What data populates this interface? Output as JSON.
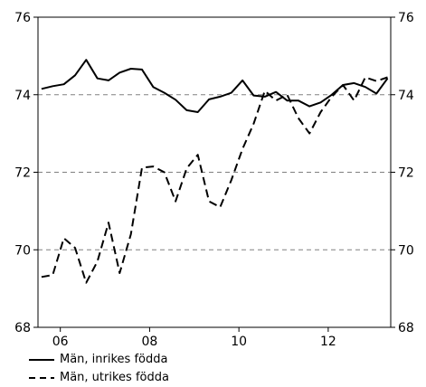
{
  "chart_data": {
    "type": "line",
    "x": [
      2005.58,
      2005.83,
      2006.08,
      2006.33,
      2006.58,
      2006.83,
      2007.08,
      2007.33,
      2007.58,
      2007.83,
      2008.08,
      2008.33,
      2008.58,
      2008.83,
      2009.08,
      2009.33,
      2009.58,
      2009.83,
      2010.08,
      2010.33,
      2010.58,
      2010.83,
      2011.08,
      2011.33,
      2011.58,
      2011.83,
      2012.08,
      2012.33,
      2012.58,
      2012.83,
      2013.08,
      2013.33
    ],
    "xticks": [
      2006,
      2008,
      2010,
      2012
    ],
    "xtick_labels": [
      "06",
      "08",
      "10",
      "12"
    ],
    "xlim": [
      2005.5,
      2013.4
    ],
    "ylim": [
      68,
      76
    ],
    "yticks": [
      68,
      70,
      72,
      74,
      76
    ],
    "grid": "horizontal-dashed",
    "series": [
      {
        "name": "Män, inrikes födda",
        "style": "solid",
        "values": [
          74.15,
          74.22,
          74.27,
          74.5,
          74.9,
          74.42,
          74.37,
          74.57,
          74.67,
          74.65,
          74.2,
          74.05,
          73.87,
          73.6,
          73.55,
          73.88,
          73.95,
          74.05,
          74.37,
          73.98,
          73.95,
          74.07,
          73.85,
          73.85,
          73.7,
          73.8,
          74.0,
          74.25,
          74.3,
          74.2,
          74.03,
          74.42
        ]
      },
      {
        "name": "Män, utrikes födda",
        "style": "dashed",
        "values": [
          69.3,
          69.35,
          70.3,
          70.05,
          69.15,
          69.7,
          70.7,
          69.4,
          70.4,
          72.12,
          72.15,
          72.0,
          71.25,
          72.1,
          72.45,
          71.25,
          71.1,
          71.8,
          72.6,
          73.25,
          74.1,
          73.85,
          74.0,
          73.4,
          73.0,
          73.55,
          73.95,
          74.25,
          73.85,
          74.45,
          74.35,
          74.45
        ]
      }
    ]
  },
  "legend": {
    "items": [
      {
        "label": "Män, inrikes födda"
      },
      {
        "label": "Män, utrikes födda"
      }
    ]
  }
}
